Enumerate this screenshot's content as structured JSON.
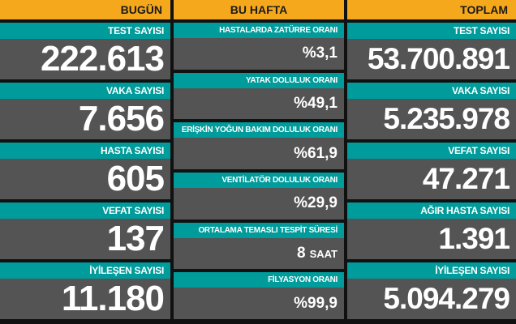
{
  "columns": [
    {
      "header": "BUGÜN",
      "items": [
        {
          "label": "TEST SAYISI",
          "value": "222.613"
        },
        {
          "label": "VAKA SAYISI",
          "value": "7.656"
        },
        {
          "label": "HASTA SAYISI",
          "value": "605"
        },
        {
          "label": "VEFAT SAYISI",
          "value": "137"
        },
        {
          "label": "İYİLEŞEN SAYISI",
          "value": "11.180"
        }
      ]
    },
    {
      "header": "BU HAFTA",
      "items": [
        {
          "label": "HASTALARDA ZATÜRRE ORANI",
          "value": "%3,1"
        },
        {
          "label": "YATAK DOLULUK ORANI",
          "value": "%49,1"
        },
        {
          "label": "ERİŞKİN YOĞUN BAKIM DOLULUK ORANI",
          "value": "%61,9"
        },
        {
          "label": "VENTİLATÖR DOLULUK ORANI",
          "value": "%29,9"
        },
        {
          "label": "ORTALAMA TEMASLI TESPİT SÜRESİ",
          "value": "8",
          "unit": "SAAT"
        },
        {
          "label": "FİLYASYON ORANI",
          "value": "%99,9"
        }
      ]
    },
    {
      "header": "TOPLAM",
      "items": [
        {
          "label": "TEST SAYISI",
          "value": "53.700.891"
        },
        {
          "label": "VAKA SAYISI",
          "value": "5.235.978"
        },
        {
          "label": "VEFAT SAYISI",
          "value": "47.271"
        },
        {
          "label": "AĞIR HASTA SAYISI",
          "value": "1.391"
        },
        {
          "label": "İYİLEŞEN SAYISI",
          "value": "5.094.279"
        }
      ]
    }
  ]
}
